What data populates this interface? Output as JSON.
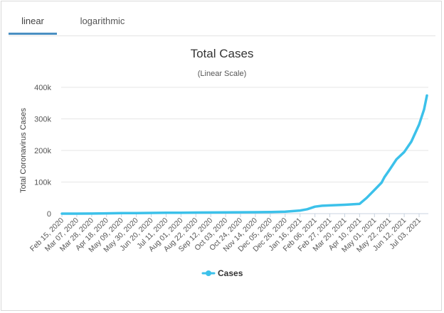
{
  "tabs": [
    {
      "label": "linear",
      "active": true
    },
    {
      "label": "logarithmic",
      "active": false
    }
  ],
  "chart_data": {
    "type": "line",
    "title": "Total Cases",
    "subtitle": "(Linear Scale)",
    "ylabel": "Total Coronavirus Cases",
    "xlabel": "",
    "ylim": [
      0,
      400000
    ],
    "yticks": [
      0,
      100000,
      200000,
      300000,
      400000
    ],
    "ytick_labels": [
      "0",
      "100k",
      "200k",
      "300k",
      "400k"
    ],
    "xtick_labels": [
      "Feb 15, 2020",
      "Mar 07, 2020",
      "Mar 28, 2020",
      "Apr 18, 2020",
      "May 09, 2020",
      "May 30, 2020",
      "Jun 20, 2020",
      "Jul 11, 2020",
      "Aug 01, 2020",
      "Aug 22, 2020",
      "Sep 12, 2020",
      "Oct 03, 2020",
      "Oct 24, 2020",
      "Nov 14, 2020",
      "Dec 05, 2020",
      "Dec 26, 2020",
      "Jan 16, 2021",
      "Feb 06, 2021",
      "Feb 27, 2021",
      "Mar 20, 2021",
      "Apr 10, 2021",
      "May 01, 2021",
      "May 22, 2021",
      "Jun 12, 2021",
      "Jul 03, 2021"
    ],
    "grid": true,
    "legend": "bottom-center",
    "series": [
      {
        "name": "Cases",
        "color": "#3cc1ea",
        "x": [
          "Feb 15, 2020",
          "Mar 07, 2020",
          "Mar 28, 2020",
          "Apr 18, 2020",
          "May 09, 2020",
          "May 30, 2020",
          "Jun 20, 2020",
          "Jul 11, 2020",
          "Aug 01, 2020",
          "Aug 22, 2020",
          "Sep 12, 2020",
          "Oct 03, 2020",
          "Oct 24, 2020",
          "Nov 14, 2020",
          "Dec 05, 2020",
          "Dec 26, 2020",
          "Jan 16, 2021",
          "Jan 26, 2021",
          "Feb 06, 2021",
          "Feb 16, 2021",
          "Feb 27, 2021",
          "Mar 20, 2021",
          "Apr 10, 2021",
          "Apr 20, 2021",
          "May 01, 2021",
          "May 11, 2021",
          "May 15, 2021",
          "May 22, 2021",
          "Jun 01, 2021",
          "Jun 12, 2021",
          "Jun 22, 2021",
          "Jul 03, 2021",
          "Jul 10, 2021",
          "Jul 14, 2021"
        ],
        "y": [
          0,
          0,
          300,
          1000,
          1500,
          1800,
          2200,
          2600,
          3000,
          3300,
          3600,
          3900,
          4200,
          4500,
          5000,
          6000,
          10000,
          14000,
          22000,
          25000,
          26000,
          28000,
          31000,
          50000,
          75000,
          98000,
          115000,
          138000,
          172000,
          195000,
          228000,
          282000,
          330000,
          374000
        ]
      }
    ]
  }
}
